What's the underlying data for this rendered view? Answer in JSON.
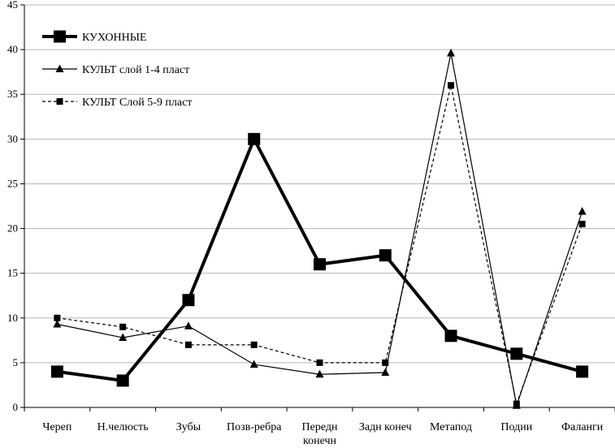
{
  "chart_data": {
    "type": "line",
    "title": "",
    "xlabel": "",
    "ylabel": "",
    "ylim": [
      0,
      45
    ],
    "yticks": [
      0,
      5,
      10,
      15,
      20,
      25,
      30,
      35,
      40,
      45
    ],
    "grid": "horizontal",
    "legend_position": "top-left",
    "categories": [
      [
        "Череп"
      ],
      [
        "Н.челюсть"
      ],
      [
        "Зубы"
      ],
      [
        "Позв-ребра"
      ],
      [
        "Передн",
        "конечн"
      ],
      [
        "Задн конеч"
      ],
      [
        "Метапод"
      ],
      [
        "Подии"
      ],
      [
        "Фаланги"
      ]
    ],
    "series": [
      {
        "name": "КУХОННЫЕ",
        "values": [
          4,
          3,
          12,
          30,
          16,
          17,
          8,
          6,
          4
        ],
        "marker": "square",
        "style": "thick-solid",
        "color": "#000000"
      },
      {
        "name": "КУЛЬТ слой 1-4 пласт",
        "values": [
          9.3,
          7.8,
          9.1,
          4.8,
          3.7,
          3.9,
          39.6,
          0.2,
          21.9
        ],
        "marker": "triangle",
        "style": "thin-solid",
        "color": "#000000"
      },
      {
        "name": "КУЛЬТ Слой 5-9 пласт",
        "values": [
          10,
          9,
          7,
          7,
          5,
          5,
          36,
          0.4,
          20.5
        ],
        "marker": "small-square",
        "style": "dashed",
        "color": "#000000"
      }
    ]
  }
}
